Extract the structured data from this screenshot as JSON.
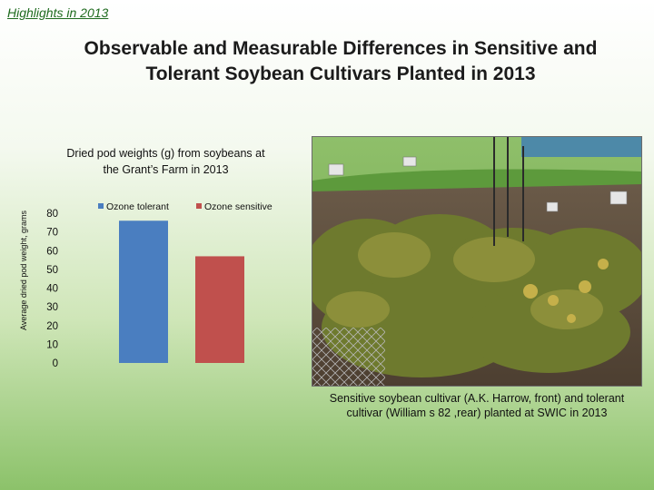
{
  "header": {
    "link_label": "Highlights in 2013"
  },
  "slide": {
    "title_line1": "Observable and Measurable Differences in Sensitive and",
    "title_line2": "Tolerant Soybean Cultivars  Planted in 2013"
  },
  "chart_data": {
    "type": "bar",
    "title_line1": "Dried pod weights (g) from soybeans at",
    "title_line2": "the Grant’s Farm in 2013",
    "ylabel": "Average dried pod weight, grams",
    "ylim": [
      0,
      80
    ],
    "yticks": [
      0,
      10,
      20,
      30,
      40,
      50,
      60,
      70,
      80
    ],
    "grid": false,
    "legend_position": "top",
    "series": [
      {
        "name": "Ozone tolerant",
        "values": [
          76
        ],
        "color": "#4a7ec0"
      },
      {
        "name": "Ozone sensitive",
        "values": [
          57
        ],
        "color": "#c0504d"
      }
    ]
  },
  "photo": {
    "caption_line1": "Sensitive soybean cultivar (A.K. Harrow, front) and tolerant",
    "caption_line2": "cultivar (William s 82 ,rear) planted at SWIC in 2013"
  }
}
